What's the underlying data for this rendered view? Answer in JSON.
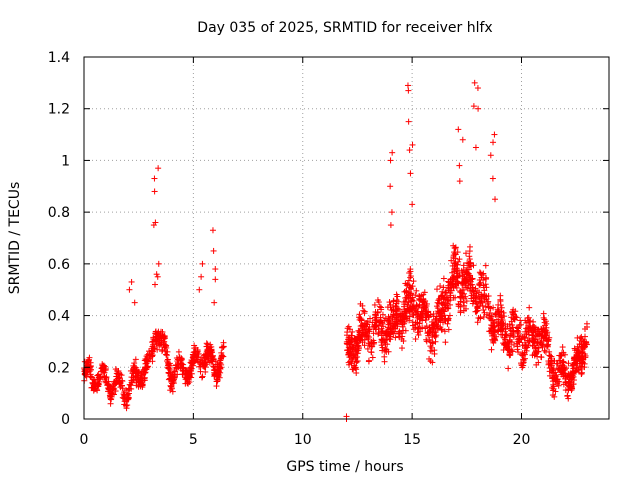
{
  "chart_data": {
    "type": "scatter",
    "title": "Day 035 of 2025, SRMTID for receiver hlfx",
    "xlabel": "GPS time / hours",
    "ylabel": "SRMTID / TECUs",
    "xlim": [
      0,
      24
    ],
    "ylim": [
      0,
      1.4
    ],
    "xticks": [
      0,
      5,
      10,
      15,
      20
    ],
    "xtick_labels": [
      "0",
      "5",
      "10",
      "15",
      "20"
    ],
    "yticks": [
      0,
      0.2,
      0.4,
      0.6,
      0.8,
      1,
      1.2,
      1.4
    ],
    "ytick_labels": [
      "0",
      "0.2",
      "0.4",
      "0.6",
      "0.8",
      "1",
      "1.2",
      "1.4"
    ],
    "grid": true,
    "marker": "+",
    "color": "#ff0000",
    "series": [
      {
        "name": "SRMTID",
        "segments": [
          {
            "t_start": 0.0,
            "t_end": 6.4,
            "n": 700,
            "shape": [
              [
                0,
                0.17
              ],
              [
                1,
                0.15
              ],
              [
                2,
                0.11
              ],
              [
                2.5,
                0.18
              ],
              [
                3,
                0.2
              ],
              [
                3.3,
                0.35
              ],
              [
                4,
                0.18
              ],
              [
                5,
                0.2
              ],
              [
                5.5,
                0.25
              ],
              [
                6,
                0.2
              ],
              [
                6.4,
                0.25
              ]
            ],
            "spread": 0.07,
            "peaks": [
              {
                "t": 3.3,
                "vals": [
                  0.97,
                  0.93,
                  0.88,
                  0.76,
                  0.75,
                  0.6,
                  0.56,
                  0.55,
                  0.52
                ]
              },
              {
                "t": 6.0,
                "vals": [
                  0.73,
                  0.65,
                  0.58,
                  0.54,
                  0.45
                ]
              },
              {
                "t": 2.2,
                "vals": [
                  0.53,
                  0.5,
                  0.45
                ]
              },
              {
                "t": 5.3,
                "vals": [
                  0.6,
                  0.55,
                  0.5
                ]
              }
            ]
          },
          {
            "t_start": 12.0,
            "t_end": 23.0,
            "n": 1500,
            "shape": [
              [
                12,
                0.25
              ],
              [
                13,
                0.35
              ],
              [
                14,
                0.35
              ],
              [
                15,
                0.45
              ],
              [
                16,
                0.35
              ],
              [
                17,
                0.55
              ],
              [
                18,
                0.5
              ],
              [
                19,
                0.35
              ],
              [
                20,
                0.3
              ],
              [
                21,
                0.32
              ],
              [
                21.5,
                0.18
              ],
              [
                22.5,
                0.18
              ],
              [
                23,
                0.35
              ]
            ],
            "spread": 0.13,
            "peaks": [
              {
                "t": 14.0,
                "vals": [
                  1.03,
                  1.0,
                  0.9,
                  0.8,
                  0.75
                ]
              },
              {
                "t": 14.9,
                "vals": [
                  1.29,
                  1.27,
                  1.15,
                  1.06,
                  1.04,
                  0.95,
                  0.83
                ]
              },
              {
                "t": 17.2,
                "vals": [
                  1.12,
                  1.08,
                  0.98,
                  0.92
                ]
              },
              {
                "t": 17.9,
                "vals": [
                  1.3,
                  1.28,
                  1.21,
                  1.2,
                  1.05
                ]
              },
              {
                "t": 18.7,
                "vals": [
                  1.1,
                  1.07,
                  1.02,
                  0.93,
                  0.85
                ]
              }
            ],
            "extra_points": [
              [
                12.0,
                0.0
              ],
              [
                12.0,
                0.01
              ]
            ]
          }
        ]
      }
    ]
  }
}
